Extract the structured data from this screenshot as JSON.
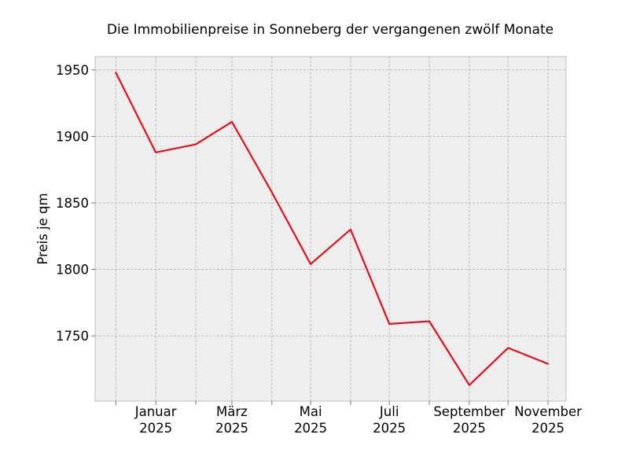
{
  "chart_data": {
    "type": "line",
    "title": "Die Immobilienpreise in Sonneberg der vergangenen zwölf Monate",
    "xlabel": "",
    "ylabel": "Preis je qm",
    "x": [
      "2024-12",
      "2025-01",
      "2025-02",
      "2025-03",
      "2025-04",
      "2025-05",
      "2025-06",
      "2025-07",
      "2025-08",
      "2025-09",
      "2025-10",
      "2025-11"
    ],
    "x_tick_labels": [
      {
        "month": "Januar",
        "year": "2025"
      },
      {
        "month": "März",
        "year": "2025"
      },
      {
        "month": "Mai",
        "year": "2025"
      },
      {
        "month": "Juli",
        "year": "2025"
      },
      {
        "month": "September",
        "year": "2025"
      },
      {
        "month": "November",
        "year": "2025"
      }
    ],
    "y_ticks": [
      "1750",
      "1800",
      "1850",
      "1900",
      "1950"
    ],
    "series": [
      {
        "values": [
          1948,
          1888,
          1894,
          1911,
          1858,
          1804,
          1830,
          1759,
          1761,
          1713,
          1741,
          1729
        ],
        "color": "#e3101c"
      }
    ],
    "xlim": [
      "2024-11-15",
      "2025-11-15"
    ],
    "ylim": [
      1701,
      1960
    ],
    "grid": true,
    "legend": "none",
    "colors": {
      "background": "#eeeeee",
      "grid": "#b0b0b0",
      "line": "#e3101c"
    }
  }
}
